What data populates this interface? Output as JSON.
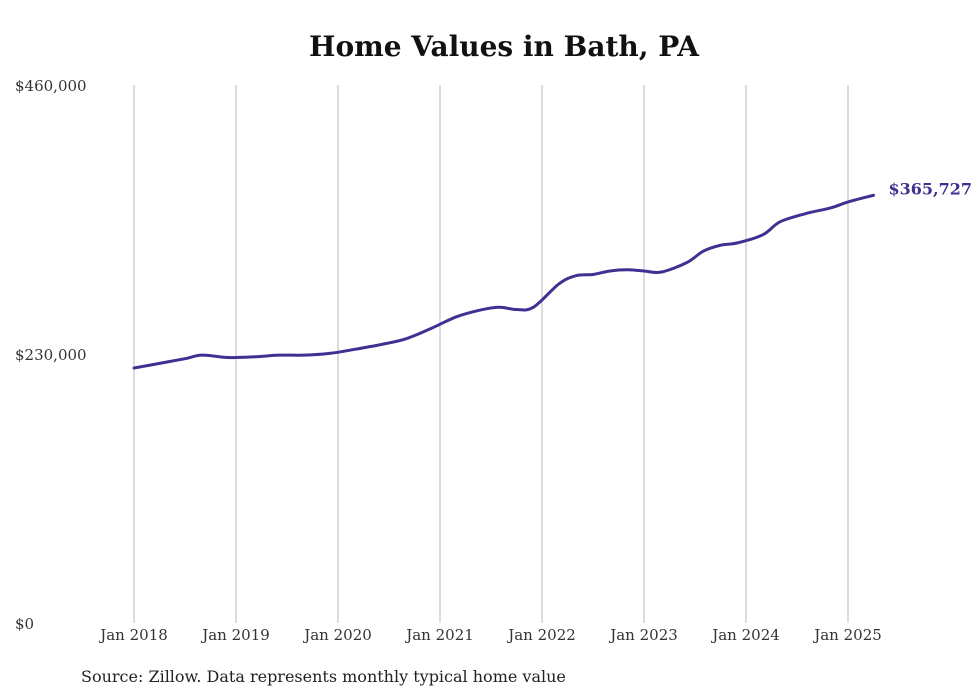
{
  "chart_data": {
    "type": "line",
    "title": "Home Values in Bath, PA",
    "source": "Source: Zillow. Data represents monthly typical home value",
    "xlabel": "",
    "ylabel": "",
    "ylim": [
      0,
      460000
    ],
    "xlim": [
      "2018-01",
      "2025-04"
    ],
    "y_ticks": [
      {
        "value": 0,
        "label": "$0"
      },
      {
        "value": 230000,
        "label": "$230,000"
      },
      {
        "value": 460000,
        "label": "$460,000"
      }
    ],
    "x_ticks": [
      {
        "value": "2018-01",
        "label": "Jan 2018"
      },
      {
        "value": "2019-01",
        "label": "Jan 2019"
      },
      {
        "value": "2020-01",
        "label": "Jan 2020"
      },
      {
        "value": "2021-01",
        "label": "Jan 2021"
      },
      {
        "value": "2022-01",
        "label": "Jan 2022"
      },
      {
        "value": "2023-01",
        "label": "Jan 2023"
      },
      {
        "value": "2024-01",
        "label": "Jan 2024"
      },
      {
        "value": "2025-01",
        "label": "Jan 2025"
      }
    ],
    "grid": "vertical",
    "line_color": "#3d3291",
    "end_label": "$365,727",
    "series": [
      {
        "x": [
          "2018-01",
          "2018-04",
          "2018-07",
          "2018-09",
          "2018-12",
          "2019-03",
          "2019-06",
          "2019-09",
          "2019-12",
          "2020-03",
          "2020-06",
          "2020-09",
          "2020-12",
          "2021-03",
          "2021-06",
          "2021-08",
          "2021-10",
          "2021-12",
          "2022-03",
          "2022-05",
          "2022-07",
          "2022-09",
          "2022-11",
          "2023-01",
          "2023-03",
          "2023-06",
          "2023-08",
          "2023-10",
          "2023-12",
          "2024-03",
          "2024-05",
          "2024-08",
          "2024-11",
          "2025-01",
          "2025-04"
        ],
        "values": [
          218000,
          222000,
          226000,
          229000,
          227000,
          227500,
          229000,
          229000,
          230500,
          234000,
          238000,
          243000,
          252000,
          262000,
          268000,
          270000,
          268000,
          270000,
          290000,
          297000,
          298000,
          301000,
          302000,
          301000,
          300000,
          308000,
          318000,
          323000,
          325000,
          332000,
          343000,
          350000,
          355000,
          360000,
          365727
        ]
      }
    ]
  }
}
